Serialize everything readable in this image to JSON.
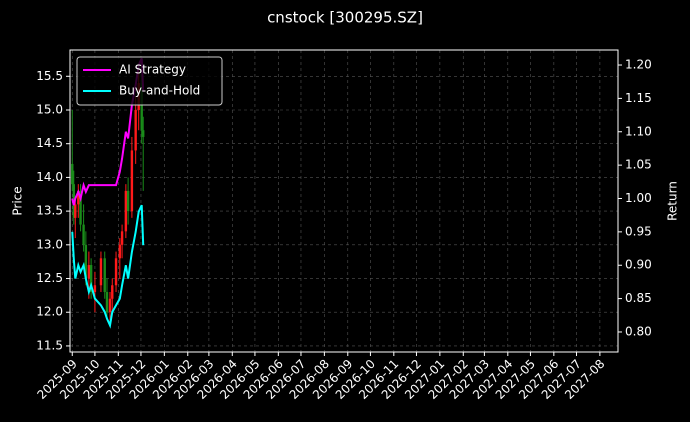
{
  "chart_data": {
    "type": "candlestick",
    "title": "cnstock [300295.SZ]",
    "ylabel": "Price",
    "y2label": "Return",
    "x": [
      "2025-09-01",
      "2025-09-03",
      "2025-09-05",
      "2025-09-09",
      "2025-09-12",
      "2025-09-16",
      "2025-09-19",
      "2025-09-23",
      "2025-09-26",
      "2025-10-01",
      "2025-10-09",
      "2025-10-14",
      "2025-10-17",
      "2025-10-21",
      "2025-10-24",
      "2025-10-29",
      "2025-11-03",
      "2025-11-06",
      "2025-11-11",
      "2025-11-14",
      "2025-11-19",
      "2025-11-24",
      "2025-11-28",
      "2025-12-02",
      "2025-12-04"
    ],
    "candles": {
      "open": [
        14.2,
        13.9,
        13.4,
        13.6,
        13.8,
        13.3,
        13.0,
        12.5,
        12.7,
        12.3,
        12.4,
        12.8,
        12.3,
        12.0,
        12.2,
        12.4,
        12.8,
        13.0,
        13.2,
        13.8,
        13.5,
        14.4,
        15.0,
        15.4,
        14.7
      ],
      "high": [
        15.0,
        14.1,
        13.7,
        13.9,
        13.9,
        13.6,
        13.2,
        12.9,
        12.8,
        12.6,
        12.9,
        12.9,
        12.5,
        12.3,
        12.5,
        12.9,
        13.1,
        13.3,
        13.9,
        14.0,
        14.6,
        15.2,
        15.6,
        15.6,
        14.9
      ],
      "low": [
        13.8,
        13.3,
        13.1,
        13.4,
        13.2,
        12.9,
        12.4,
        12.2,
        12.2,
        12.0,
        12.3,
        12.2,
        11.9,
        11.8,
        12.0,
        12.3,
        12.5,
        12.8,
        13.1,
        13.3,
        13.4,
        14.2,
        14.7,
        14.5,
        13.8
      ],
      "close": [
        13.9,
        13.4,
        13.6,
        13.8,
        13.3,
        13.0,
        12.5,
        12.7,
        12.3,
        12.4,
        12.8,
        12.3,
        12.0,
        12.2,
        12.4,
        12.8,
        13.0,
        13.2,
        13.8,
        13.5,
        14.4,
        15.0,
        15.4,
        14.7,
        14.6
      ],
      "up_color": "#ff1a1a",
      "down_color": "#1a8c1a"
    },
    "series": [
      {
        "name": "AI Strategy",
        "color": "#ff00ff",
        "axis": "y2",
        "values": [
          1.0,
          0.99,
          1.0,
          1.01,
          1.0,
          1.02,
          1.01,
          1.02,
          1.02,
          1.02,
          1.02,
          1.02,
          1.02,
          1.02,
          1.02,
          1.02,
          1.04,
          1.06,
          1.1,
          1.09,
          1.14,
          1.17,
          1.2,
          1.21,
          1.16
        ]
      },
      {
        "name": "Buy-and-Hold",
        "color": "#00ffff",
        "axis": "y2",
        "values": [
          0.95,
          0.91,
          0.88,
          0.9,
          0.89,
          0.9,
          0.88,
          0.86,
          0.87,
          0.85,
          0.84,
          0.83,
          0.82,
          0.81,
          0.83,
          0.84,
          0.85,
          0.87,
          0.9,
          0.88,
          0.92,
          0.95,
          0.98,
          0.99,
          0.93
        ]
      }
    ],
    "xlim": [
      "2025-08-29",
      "2027-08-25"
    ],
    "xticks": [
      "2025-09",
      "2025-10",
      "2025-11",
      "2025-12",
      "2026-01",
      "2026-02",
      "2026-03",
      "2026-04",
      "2026-05",
      "2026-06",
      "2026-07",
      "2026-08",
      "2026-09",
      "2026-10",
      "2026-11",
      "2026-12",
      "2027-01",
      "2027-02",
      "2027-03",
      "2027-04",
      "2027-05",
      "2027-06",
      "2027-07",
      "2027-08"
    ],
    "ylim": [
      11.41,
      15.89
    ],
    "yticks": [
      11.5,
      {
        "value": 12,
        "label": "12.0"
      },
      12.5,
      {
        "value": 13,
        "label": "13.0"
      },
      13.5,
      {
        "value": 14,
        "label": "14.0"
      },
      14.5,
      {
        "value": 15,
        "label": "15.0"
      },
      15.5
    ],
    "y2lim": [
      0.77,
      1.2225
    ],
    "y2ticks": [
      {
        "value": 0.8,
        "label": "0.80"
      },
      0.85,
      {
        "value": 0.9,
        "label": "0.90"
      },
      0.95,
      {
        "value": 1,
        "label": "1.00"
      },
      1.05,
      {
        "value": 1.1,
        "label": "1.10"
      },
      1.15,
      {
        "value": 1.2,
        "label": "1.20"
      }
    ],
    "grid": true,
    "legend": "upper left"
  }
}
